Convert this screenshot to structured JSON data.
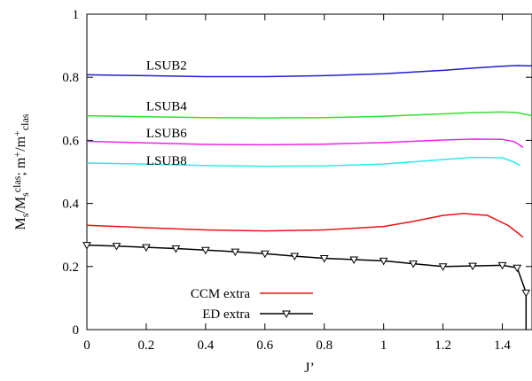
{
  "chart_data": {
    "type": "line",
    "xlabel": "J’",
    "ylabel": {
      "parts": [
        "M",
        "s",
        "/M",
        "s",
        "clas",
        "; m",
        "+",
        "/m",
        "+",
        "clas"
      ],
      "kinds": [
        "n",
        "sub",
        "n",
        "sub",
        "sup",
        "n",
        "sup",
        "n",
        "sup",
        "sub"
      ]
    },
    "xlim": [
      0,
      1.5
    ],
    "ylim": [
      0,
      1
    ],
    "xticks": [
      0,
      0.2,
      0.4,
      0.6,
      0.8,
      1,
      1.2,
      1.4
    ],
    "xtick_labels": [
      "0",
      "0.2",
      "0.4",
      "0.6",
      "0.8",
      "1",
      "1.2",
      "1.4"
    ],
    "yticks": [
      0,
      0.2,
      0.4,
      0.6,
      0.8,
      1
    ],
    "ytick_labels": [
      "0",
      "0.2",
      "0.4",
      "0.6",
      "0.8",
      "1"
    ],
    "grid": false,
    "legend_position": "bottom-left",
    "series": [
      {
        "name": "LSUB2",
        "label_text": "LSUB2",
        "label_at": [
          0.2,
          0.825
        ],
        "color": "#1f1fd0",
        "x": [
          0,
          0.2,
          0.4,
          0.6,
          0.8,
          1.0,
          1.2,
          1.3,
          1.4,
          1.45,
          1.5
        ],
        "y": [
          0.808,
          0.805,
          0.802,
          0.802,
          0.805,
          0.811,
          0.822,
          0.829,
          0.835,
          0.837,
          0.836
        ]
      },
      {
        "name": "LSUB4",
        "label_text": "LSUB4",
        "label_at": [
          0.2,
          0.695
        ],
        "color": "#33dd33",
        "x": [
          0,
          0.2,
          0.4,
          0.6,
          0.8,
          1.0,
          1.2,
          1.3,
          1.4,
          1.45,
          1.5
        ],
        "y": [
          0.678,
          0.675,
          0.672,
          0.671,
          0.672,
          0.676,
          0.684,
          0.688,
          0.69,
          0.688,
          0.678
        ]
      },
      {
        "name": "LSUB6",
        "label_text": "LSUB6",
        "label_at": [
          0.2,
          0.61
        ],
        "color": "#ee22ee",
        "x": [
          0,
          0.2,
          0.4,
          0.6,
          0.8,
          1.0,
          1.2,
          1.3,
          1.4,
          1.44,
          1.47
        ],
        "y": [
          0.597,
          0.592,
          0.587,
          0.586,
          0.588,
          0.593,
          0.601,
          0.604,
          0.603,
          0.596,
          0.578
        ]
      },
      {
        "name": "LSUB8",
        "label_text": "LSUB8",
        "label_at": [
          0.2,
          0.523
        ],
        "color": "#22eeee",
        "x": [
          0,
          0.2,
          0.4,
          0.6,
          0.8,
          1.0,
          1.2,
          1.3,
          1.4,
          1.44,
          1.46
        ],
        "y": [
          0.528,
          0.525,
          0.52,
          0.518,
          0.519,
          0.525,
          0.539,
          0.546,
          0.545,
          0.531,
          0.52
        ]
      },
      {
        "name": "CCM extra",
        "color": "#ee1111",
        "x": [
          0,
          0.2,
          0.4,
          0.6,
          0.8,
          1.0,
          1.1,
          1.2,
          1.27,
          1.35,
          1.42,
          1.45,
          1.47
        ],
        "y": [
          0.331,
          0.323,
          0.316,
          0.313,
          0.316,
          0.327,
          0.343,
          0.362,
          0.368,
          0.362,
          0.33,
          0.308,
          0.293
        ]
      },
      {
        "name": "ED extra",
        "color": "#000000",
        "marker": "triangle-down",
        "x": [
          0,
          0.1,
          0.2,
          0.3,
          0.4,
          0.5,
          0.6,
          0.7,
          0.8,
          0.9,
          1.0,
          1.1,
          1.2,
          1.3,
          1.4,
          1.45,
          1.48
        ],
        "y": [
          0.268,
          0.265,
          0.261,
          0.257,
          0.252,
          0.247,
          0.241,
          0.233,
          0.226,
          0.222,
          0.218,
          0.209,
          0.2,
          0.202,
          0.204,
          0.196,
          0.117
        ],
        "tail": {
          "x": [
            1.48,
            1.48
          ],
          "y": [
            0.117,
            0.0
          ]
        }
      }
    ]
  }
}
